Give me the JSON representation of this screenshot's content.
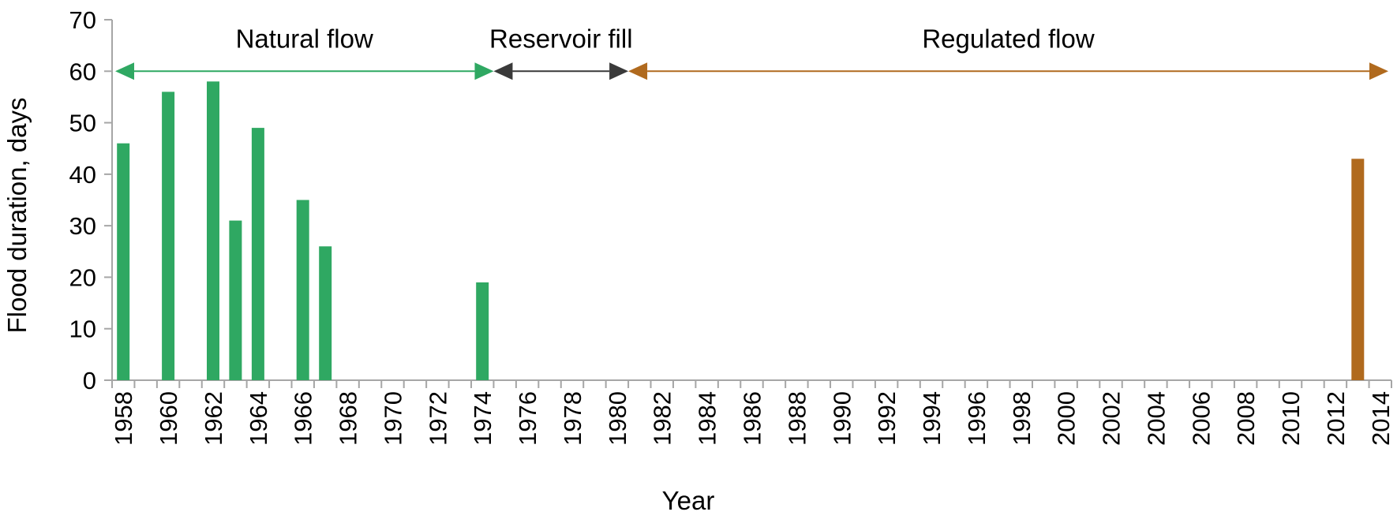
{
  "chart_data": {
    "type": "bar",
    "title": "",
    "xlabel": "Year",
    "ylabel": "Flood duration, days",
    "ylim": [
      0,
      70
    ],
    "yticks": [
      0,
      10,
      20,
      30,
      40,
      50,
      60,
      70
    ],
    "grid": false,
    "legend": "none",
    "years": [
      1958,
      1959,
      1960,
      1961,
      1962,
      1963,
      1964,
      1965,
      1966,
      1967,
      1968,
      1969,
      1970,
      1971,
      1972,
      1973,
      1974,
      1975,
      1976,
      1977,
      1978,
      1979,
      1980,
      1981,
      1982,
      1983,
      1984,
      1985,
      1986,
      1987,
      1988,
      1989,
      1990,
      1991,
      1992,
      1993,
      1994,
      1995,
      1996,
      1997,
      1998,
      1999,
      2000,
      2001,
      2002,
      2003,
      2004,
      2005,
      2006,
      2007,
      2008,
      2009,
      2010,
      2011,
      2012,
      2013,
      2014
    ],
    "x_tick_labels": [
      "1958",
      "1960",
      "1962",
      "1964",
      "1966",
      "1968",
      "1970",
      "1972",
      "1974",
      "1976",
      "1978",
      "1980",
      "1982",
      "1984",
      "1986",
      "1988",
      "1990",
      "1992",
      "1994",
      "1996",
      "1998",
      "2000",
      "2002",
      "2004",
      "2006",
      "2008",
      "2010",
      "2012",
      "2014"
    ],
    "bars": [
      {
        "year": 1958,
        "value": 46,
        "period": "natural"
      },
      {
        "year": 1960,
        "value": 56,
        "period": "natural"
      },
      {
        "year": 1962,
        "value": 58,
        "period": "natural"
      },
      {
        "year": 1963,
        "value": 31,
        "period": "natural"
      },
      {
        "year": 1964,
        "value": 49,
        "period": "natural"
      },
      {
        "year": 1966,
        "value": 35,
        "period": "natural"
      },
      {
        "year": 1967,
        "value": 26,
        "period": "natural"
      },
      {
        "year": 1974,
        "value": 19,
        "period": "natural"
      },
      {
        "year": 2013,
        "value": 43,
        "period": "regulated"
      }
    ],
    "colors": {
      "natural": "#2fa862",
      "reservoir": "#3a3a3a",
      "regulated": "#b06a1e",
      "axis": "#a6a6a6"
    },
    "annotations": [
      {
        "label": "Natural flow",
        "period": "natural",
        "y": 60,
        "from_year": 1958,
        "to_year": 1974
      },
      {
        "label": "Reservoir fill",
        "period": "reservoir",
        "y": 60,
        "from_year": 1975,
        "to_year": 1980
      },
      {
        "label": "Regulated flow",
        "period": "regulated",
        "y": 60,
        "from_year": 1981,
        "to_year": 2014
      }
    ]
  }
}
